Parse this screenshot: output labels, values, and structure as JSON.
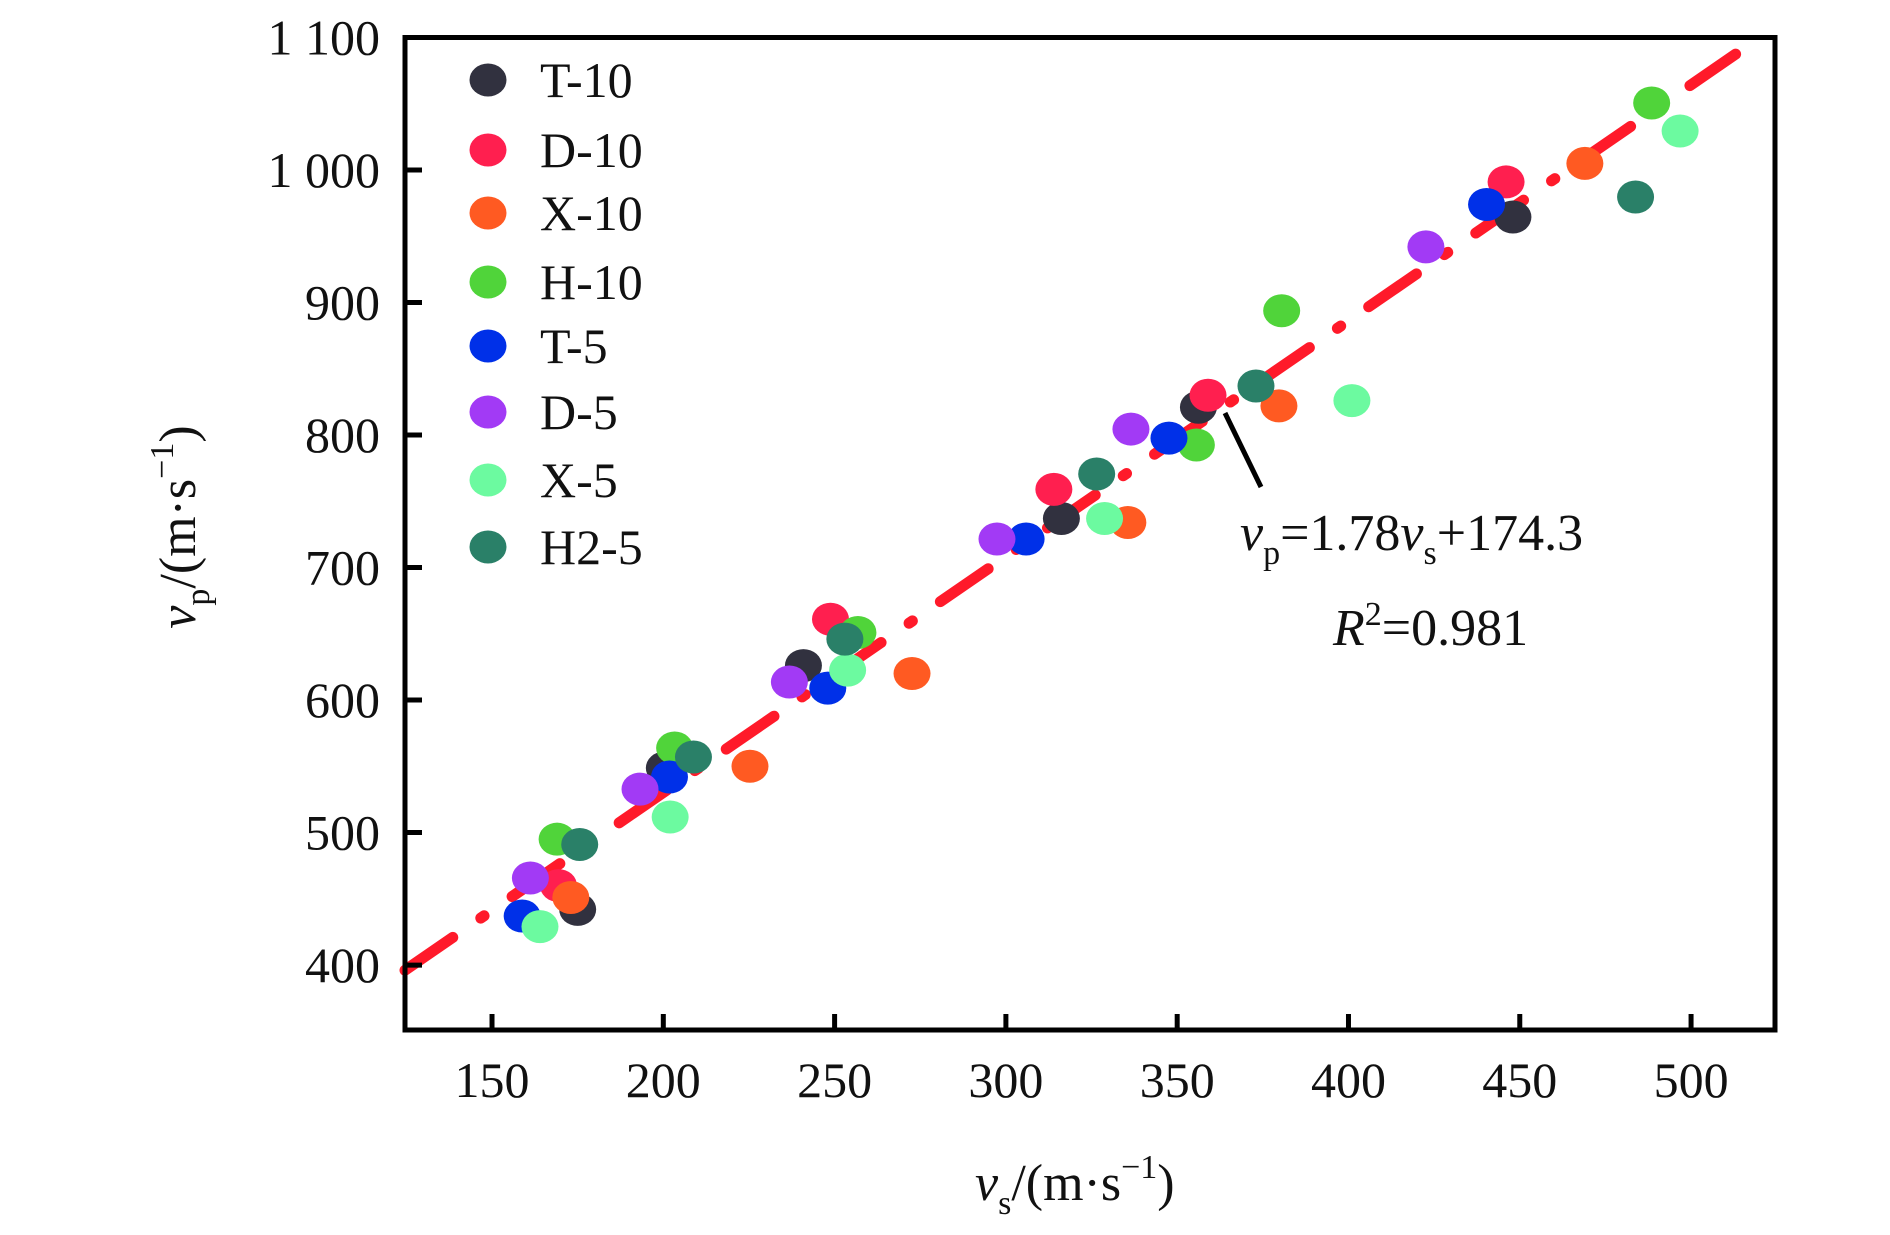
{
  "chart_data": {
    "type": "scatter",
    "title": "",
    "xlabel": "v_s/(m·s^-1)",
    "ylabel": "v_p/(m·s^-1)",
    "xlabel_parts": {
      "var": "v",
      "sub": "s",
      "unit": "/(m·s",
      "sup": "−1",
      "close": ")"
    },
    "ylabel_parts": {
      "var": "v",
      "sub": "p",
      "unit": "/(m·s",
      "sup": "−1",
      "close": ")"
    },
    "xlim": [
      124.6,
      524.5
    ],
    "ylim": [
      351,
      1100
    ],
    "xticks": [
      150,
      200,
      250,
      300,
      350,
      400,
      450,
      500
    ],
    "xtick_labels": [
      "150",
      "200",
      "250",
      "300",
      "350",
      "400",
      "450",
      "500"
    ],
    "yticks": [
      400,
      500,
      600,
      700,
      800,
      900,
      1000,
      1100
    ],
    "ytick_labels": [
      "400",
      "500",
      "600",
      "700",
      "800",
      "900",
      "1 000",
      "1 100"
    ],
    "grid": false,
    "legend_position": "top-left",
    "series": [
      {
        "name": "T-10",
        "color": "#31313f",
        "points": [
          [
            175,
            442
          ],
          [
            200.3,
            548.7
          ],
          [
            240.9,
            626
          ],
          [
            316.2,
            737
          ],
          [
            356.2,
            821
          ],
          [
            448,
            964.5
          ]
        ]
      },
      {
        "name": "D-10",
        "color": "#ff1f4f",
        "points": [
          [
            169.4,
            460
          ],
          [
            248.8,
            661
          ],
          [
            314,
            759
          ],
          [
            359,
            830
          ],
          [
            446,
            991
          ]
        ]
      },
      {
        "name": "X-10",
        "color": "#ff5a22",
        "points": [
          [
            173,
            451
          ],
          [
            225.3,
            550
          ],
          [
            272.6,
            620
          ],
          [
            335.6,
            734
          ],
          [
            379.7,
            822
          ],
          [
            469,
            1005
          ]
        ]
      },
      {
        "name": "H-10",
        "color": "#50d43a",
        "points": [
          [
            169,
            495
          ],
          [
            203.3,
            563.8
          ],
          [
            256.8,
            651
          ],
          [
            355.6,
            792.5
          ],
          [
            380.5,
            893.8
          ],
          [
            488.5,
            1050.6
          ]
        ]
      },
      {
        "name": "T-5",
        "color": "#0030e8",
        "points": [
          [
            158.8,
            437
          ],
          [
            201.8,
            541.9
          ],
          [
            248,
            609
          ],
          [
            305.9,
            721.5
          ],
          [
            347.6,
            797.7
          ],
          [
            440.3,
            974
          ]
        ]
      },
      {
        "name": "D-5",
        "color": "#a23af5",
        "points": [
          [
            161.2,
            465.7
          ],
          [
            193.2,
            532.8
          ],
          [
            236.8,
            613.6
          ],
          [
            297.4,
            721.5
          ],
          [
            336.5,
            804.5
          ],
          [
            422.6,
            942
          ]
        ]
      },
      {
        "name": "X-5",
        "color": "#6cfaa0",
        "points": [
          [
            164,
            429
          ],
          [
            202,
            511.7
          ],
          [
            253.8,
            622.6
          ],
          [
            328.8,
            737
          ],
          [
            401,
            826
          ],
          [
            496.8,
            1029.4
          ]
        ]
      },
      {
        "name": "H2-5",
        "color": "#2a8068",
        "points": [
          [
            175.6,
            491
          ],
          [
            208.8,
            557
          ],
          [
            253,
            646
          ],
          [
            326.5,
            770.6
          ],
          [
            373,
            837
          ],
          [
            483.8,
            979.6
          ]
        ]
      }
    ],
    "fit_line": {
      "slope": 1.78,
      "intercept": 174.3,
      "x_range": [
        124.6,
        513
      ],
      "color": "#ff1a2a",
      "style": "dash-dot"
    },
    "annotations": [
      {
        "equation": {
          "lhs_var": "v",
          "lhs_sub": "p",
          "eq_coef": "=1.78",
          "rhs_var": "v",
          "rhs_sub": "s",
          "rhs_tail": "+174.3"
        },
        "r2": {
          "var": "R",
          "sup": "2",
          "tail": "=0.981"
        },
        "points_to": [
          361,
          833
        ]
      }
    ]
  }
}
